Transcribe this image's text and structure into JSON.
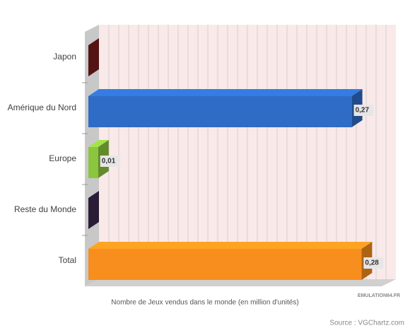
{
  "chart_data": {
    "type": "bar3d-horizontal",
    "categories": [
      "Japon",
      "Amérique du Nord",
      "Europe",
      "Reste du Monde",
      "Total"
    ],
    "values": [
      0,
      0.27,
      0.01,
      0,
      0.28
    ],
    "value_labels": [
      null,
      "0,27",
      "0,01",
      null,
      "0,28"
    ],
    "colors": [
      "#7a1c1c",
      "#2e6cc6",
      "#8cc63e",
      "#3b2a4c",
      "#f78e1e"
    ],
    "xlim": [
      0,
      0.3
    ],
    "xlabel": "Nombre de Jeux vendus dans le monde (en million d'unités)",
    "watermark": "EMULATION64.FR",
    "source": "Source : VGChartz.com",
    "grid": true
  }
}
